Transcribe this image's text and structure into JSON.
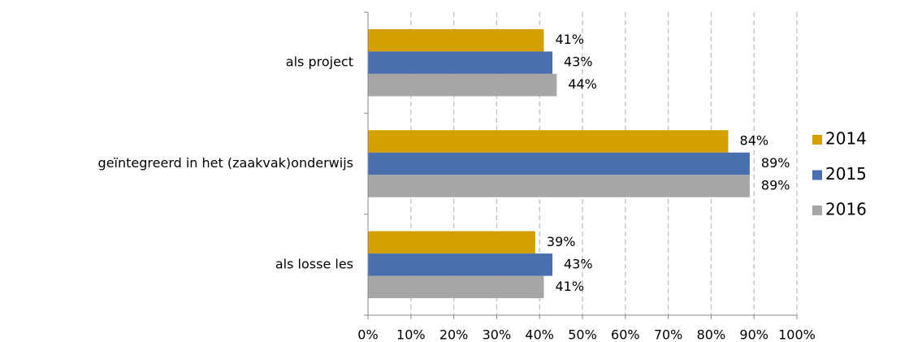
{
  "chart_data": {
    "type": "hbar",
    "categories": [
      "als project",
      "geïntegreerd in het (zaakvak)onderwijs",
      "als losse les"
    ],
    "series": [
      {
        "name": "2014",
        "color": "#d4a000",
        "values": [
          41,
          84,
          39
        ],
        "value_labels": [
          "41%",
          "84%",
          "39%"
        ]
      },
      {
        "name": "2015",
        "color": "#4a6fae",
        "values": [
          43,
          89,
          43
        ],
        "value_labels": [
          "43%",
          "89%",
          "43%"
        ]
      },
      {
        "name": "2016",
        "color": "#a6a6a6",
        "values": [
          44,
          89,
          41
        ],
        "value_labels": [
          "44%",
          "89%",
          "41%"
        ]
      }
    ],
    "xlim": [
      0,
      100
    ],
    "xticks": [
      {
        "value": 0,
        "label": "0%"
      },
      {
        "value": 10,
        "label": "10%"
      },
      {
        "value": 20,
        "label": "20%"
      },
      {
        "value": 30,
        "label": "30%"
      },
      {
        "value": 40,
        "label": "40%"
      },
      {
        "value": 50,
        "label": "50%"
      },
      {
        "value": 60,
        "label": "60%"
      },
      {
        "value": 70,
        "label": "70%"
      },
      {
        "value": 80,
        "label": "80%"
      },
      {
        "value": 90,
        "label": "90%"
      },
      {
        "value": 100,
        "label": "100%"
      }
    ],
    "grid": true,
    "legend": "right"
  }
}
